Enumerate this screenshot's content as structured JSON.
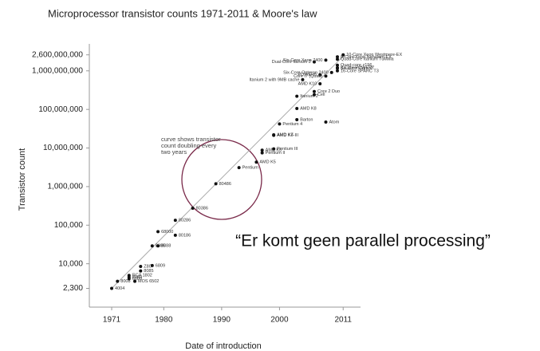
{
  "chart_data": {
    "type": "scatter",
    "title": "Microprocessor transistor counts 1971-2011 & Moore's law",
    "xlabel": "Date of introduction",
    "ylabel": "Transistor count",
    "log_y": true,
    "xlim": [
      1967,
      2014
    ],
    "ylim": [
      1000,
      5000000000
    ],
    "xticks": [
      1971,
      1980,
      1990,
      2000,
      2011
    ],
    "yticks": [
      {
        "value": 2300,
        "label": "2,300"
      },
      {
        "value": 10000,
        "label": "10,000"
      },
      {
        "value": 100000,
        "label": "100,000"
      },
      {
        "value": 1000000,
        "label": "1,000,000"
      },
      {
        "value": 10000000,
        "label": "10,000,000"
      },
      {
        "value": 100000000,
        "label": "100,000,000"
      },
      {
        "value": 1000000000,
        "label": "1,000,000,000"
      },
      {
        "value": 2600000000,
        "label": "2,600,000,000"
      }
    ],
    "annotations": [
      [
        "curve shows transistor",
        "count doubling every",
        "two years"
      ],
      "“Er komt geen parallel processing”"
    ],
    "series": [
      {
        "type": "scatter",
        "color": "#111",
        "labels": [
          "4004",
          "8008",
          "8080",
          "RCA 1802",
          "MOS 6502",
          "6800",
          "Z80",
          "8085",
          "6809",
          "8086",
          "8088",
          "68000",
          "80186",
          "80286",
          "80386",
          "80486",
          "Pentium",
          "AMD K5",
          "Pentium II",
          "AMD K6",
          "Pentium III",
          "AMD K6-III",
          "AMD K7",
          "Pentium 4",
          "Barton",
          "AMD K8",
          "Atom",
          "Itanium 2",
          "Core 2 Duo",
          "Cell",
          "Itanium 2 with 9MB cache",
          "AMD K10",
          "POWER6",
          "Core i7 (Quad)",
          "Six-Core Opteron 2400",
          "Dual-Core Itanium 2",
          "Six-Core Xeon 7400",
          "Six-Core Core i7",
          "8-Core POWER7",
          "Quad-core z196",
          "Quad-Core Itanium Tukwila",
          "8-Core Xeon Nehalem-EX",
          "10-Core Xeon Westmere-EX",
          "16-Core SPARC T3"
        ],
        "x": [
          1971,
          1972,
          1974,
          1974,
          1975,
          1974,
          1976,
          1976,
          1978,
          1978,
          1979,
          1979,
          1982,
          1982,
          1985,
          1989,
          1993,
          1996,
          1997,
          1997,
          1999,
          1999,
          1999,
          2000,
          2003,
          2003,
          2008,
          2003,
          2006,
          2006,
          2004,
          2007,
          2007,
          2008,
          2009,
          2006,
          2008,
          2010,
          2010,
          2010,
          2010,
          2010,
          2011,
          2010
        ],
        "values": [
          2300,
          3500,
          4500,
          5000,
          3500,
          4100,
          8500,
          6500,
          9000,
          29000,
          29000,
          68000,
          55000,
          134000,
          275000,
          1180000,
          3100000,
          4300000,
          7500000,
          8800000,
          9500000,
          21300000,
          22000000,
          42000000,
          54300000,
          105900000,
          47000000,
          220000000,
          291000000,
          241000000,
          592000000,
          463000000,
          789000000,
          731000000,
          904000000,
          1700000000,
          1900000000,
          1170000000,
          1200000000,
          1400000000,
          2000000000,
          2300000000,
          2600000000,
          1000000000
        ]
      },
      {
        "type": "line",
        "color": "#aaa",
        "x": [
          1971,
          2011
        ],
        "values": [
          2300,
          2400000000
        ]
      }
    ]
  }
}
